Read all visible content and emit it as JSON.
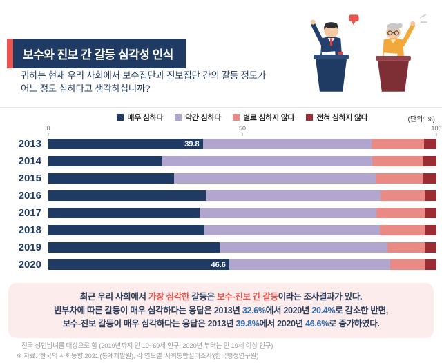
{
  "header": {
    "title": "보수와 진보 간 갈등 심각성 인식",
    "subtitle_line1": "귀하는 현재 우리 사회에서 보수집단과 진보집단 간의 갈등 정도가",
    "subtitle_line2": "어느 정도 심하다고 생각하십니까?"
  },
  "icons": {
    "illustration": "two-debaters-at-podiums"
  },
  "chart_data": {
    "type": "bar",
    "orientation": "horizontal",
    "stacked": true,
    "unit_label": "(단위: %)",
    "categories": [
      "2013",
      "2014",
      "2015",
      "2016",
      "2017",
      "2018",
      "2019",
      "2020"
    ],
    "series": [
      {
        "name": "매우 심하다",
        "color": "#1f3b63",
        "values": [
          39.8,
          29.1,
          32.3,
          40.6,
          39.0,
          40.2,
          44.1,
          46.6
        ]
      },
      {
        "name": "약간 심하다",
        "color": "#b1a6ce",
        "values": [
          43.4,
          54.4,
          52.1,
          44.9,
          45.6,
          45.2,
          43.2,
          41.5
        ]
      },
      {
        "name": "별로 심하지 않다",
        "color": "#e98b84",
        "values": [
          13.6,
          13.1,
          12.2,
          11.5,
          12.4,
          11.6,
          9.7,
          9.0
        ]
      },
      {
        "name": "전혀 심하지 않다",
        "color": "#9b2c33",
        "values": [
          3.2,
          3.4,
          3.4,
          3.0,
          3.0,
          3.0,
          3.0,
          2.9
        ]
      }
    ],
    "bar_labels": {
      "2013": "39.8",
      "2020": "46.6"
    },
    "x_ticks": [
      "0",
      "50",
      "100"
    ],
    "xlim": [
      0,
      100
    ],
    "legend_position": "top",
    "grid": false
  },
  "summary": {
    "lines": [
      [
        {
          "text": "최근 우리 사회에서 ",
          "style": "base"
        },
        {
          "text": "가장 심각한",
          "style": "red"
        },
        {
          "text": " 갈등은 ",
          "style": "base"
        },
        {
          "text": "보수-진보 간 갈등",
          "style": "red"
        },
        {
          "text": "이라는 조사결과가 있다.",
          "style": "base"
        }
      ],
      [
        {
          "text": "빈부차에 따른 갈등이 매우 심각하다는 응답은 2013년 ",
          "style": "base"
        },
        {
          "text": "32.6%",
          "style": "blue"
        },
        {
          "text": "에서 2020년 ",
          "style": "base"
        },
        {
          "text": "20.4%",
          "style": "blue"
        },
        {
          "text": "로 감소한 반면,",
          "style": "base"
        }
      ],
      [
        {
          "text": "보수-진보 갈등이 매우 심각하다는 응답은 2013년 ",
          "style": "base"
        },
        {
          "text": "39.8%",
          "style": "blue"
        },
        {
          "text": "에서 2020년 ",
          "style": "base"
        },
        {
          "text": "46.6%",
          "style": "blue"
        },
        {
          "text": "로 증가하였다.",
          "style": "base"
        }
      ]
    ]
  },
  "footer": {
    "line1": "전국 성인남녀를 대상으로 함 (2019년까지 만 19~69세 인구, 2020년 부터는 만 19세 이상 인구)",
    "line2": "※ 자료: '한국의 사회동향 2021'(통계개발원), 각 연도별 '사회통합실태조사'(한국행정연구원)"
  },
  "colors": {
    "accent_red": "#e8544e",
    "navy": "#1f3b63",
    "highlight_blue": "#2e6cb5",
    "panel_pink": "#fdecec"
  }
}
